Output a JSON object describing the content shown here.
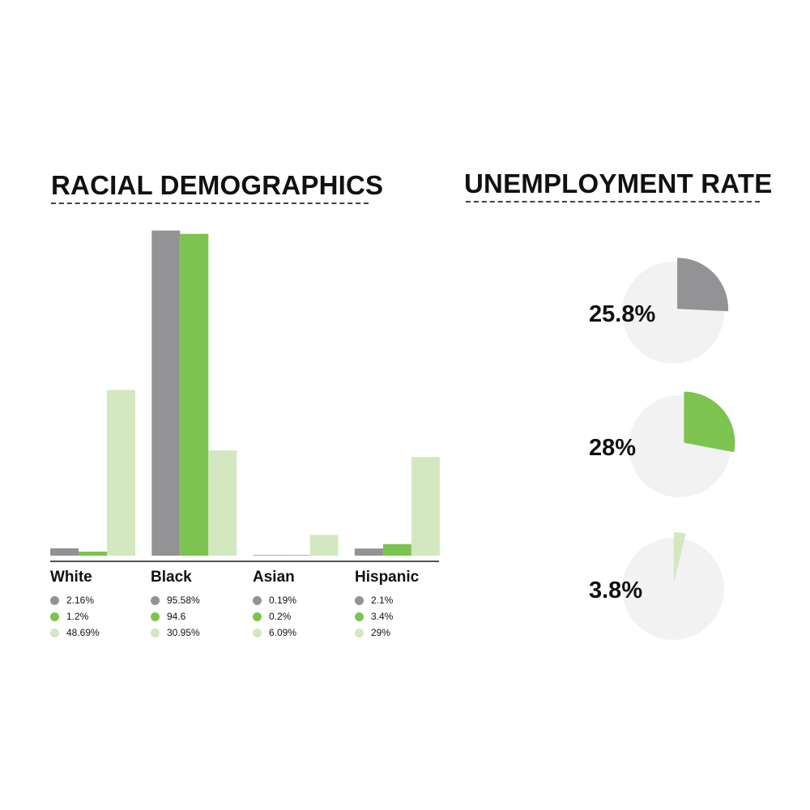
{
  "colors": {
    "series_1": "#939396",
    "series_2": "#7dc34f",
    "series_3": "#d3e8c0",
    "pie_bg": "#f2f2f2",
    "axis": "#1a1a1a"
  },
  "chart_data": [
    {
      "type": "bar",
      "title": "RACIAL DEMOGRAPHICS",
      "categories": [
        "White",
        "Black",
        "Asian",
        "Hispanic"
      ],
      "series": [
        {
          "color": "#939396",
          "values": [
            2.16,
            95.58,
            0.19,
            2.1
          ]
        },
        {
          "color": "#7dc34f",
          "values": [
            1.2,
            94.6,
            0.2,
            3.4
          ]
        },
        {
          "color": "#d3e8c0",
          "values": [
            48.69,
            30.95,
            6.09,
            29
          ]
        }
      ],
      "value_labels": [
        [
          "2.16%",
          "1.2%",
          "48.69%"
        ],
        [
          "95.58%",
          "94.6",
          "30.95%"
        ],
        [
          "0.19%",
          "0.2%",
          "6.09%"
        ],
        [
          "2.1%",
          "3.4%",
          "29%"
        ]
      ],
      "ylim": [
        0,
        100
      ],
      "grid": false
    },
    {
      "type": "pie",
      "title": "UNEMPLOYMENT RATE",
      "pies": [
        {
          "label": "25.8%",
          "value": 25.8,
          "color": "#939396"
        },
        {
          "label": "28%",
          "value": 28,
          "color": "#7dc34f"
        },
        {
          "label": "3.8%",
          "value": 3.8,
          "color": "#d3e8c0"
        }
      ]
    }
  ]
}
